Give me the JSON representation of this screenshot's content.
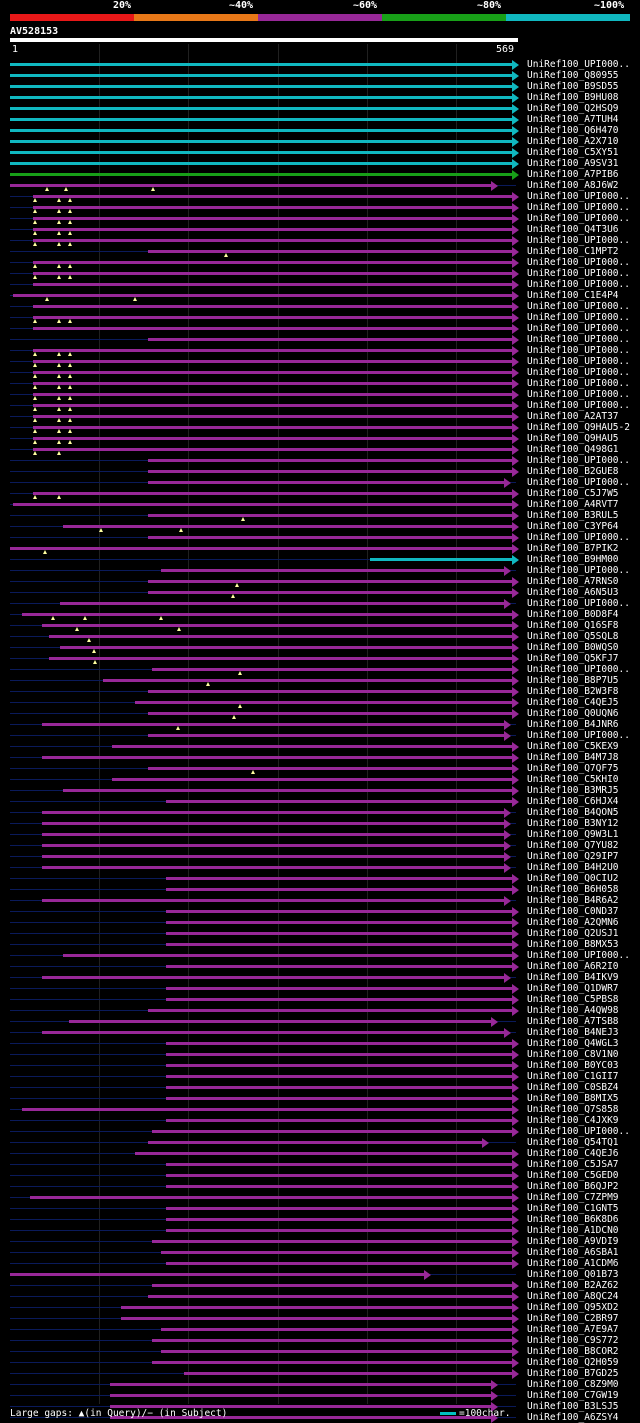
{
  "header": {
    "percent_labels": [
      "20%",
      "~40%",
      "~60%",
      "~80%",
      "~100%"
    ],
    "colors": [
      "#e81818",
      "#e87818",
      "#982898",
      "#18a018",
      "#10b8c0"
    ],
    "query_id": "AV528153",
    "ruler_start": "1",
    "ruler_end": "569",
    "query_length": 569
  },
  "footer": {
    "gaps_text": "Large gaps: ▲(in Query)/− (in Subject)",
    "scale_text": "=100char."
  },
  "chart_data": {
    "type": "alignment",
    "query_length": 569,
    "hits": [
      {
        "name": "UniRef100_UPI000..",
        "start": 1,
        "end": 569,
        "color": "cyan",
        "ins": []
      },
      {
        "name": "UniRef100_Q80955",
        "start": 1,
        "end": 569,
        "color": "cyan",
        "ins": []
      },
      {
        "name": "UniRef100_B9SD55",
        "start": 1,
        "end": 569,
        "color": "cyan",
        "ins": []
      },
      {
        "name": "UniRef100_B9HU08",
        "start": 1,
        "end": 569,
        "color": "cyan",
        "ins": []
      },
      {
        "name": "UniRef100_Q2HSQ9",
        "start": 1,
        "end": 569,
        "color": "cyan",
        "ins": []
      },
      {
        "name": "UniRef100_A7TUH4",
        "start": 1,
        "end": 569,
        "color": "cyan",
        "ins": []
      },
      {
        "name": "UniRef100_Q6H470",
        "start": 1,
        "end": 569,
        "color": "cyan",
        "ins": []
      },
      {
        "name": "UniRef100_A2X710",
        "start": 1,
        "end": 569,
        "color": "cyan",
        "ins": []
      },
      {
        "name": "UniRef100_C5XY51",
        "start": 1,
        "end": 569,
        "color": "cyan",
        "ins": []
      },
      {
        "name": "UniRef100_A9SV31",
        "start": 1,
        "end": 569,
        "color": "cyan",
        "ins": []
      },
      {
        "name": "UniRef100_A7PIB6",
        "start": 1,
        "end": 569,
        "color": "green",
        "ins": []
      },
      {
        "name": "UniRef100_A8J6W2",
        "start": 1,
        "end": 545,
        "color": "purple",
        "ins": [
          43,
          64,
          162
        ]
      },
      {
        "name": "UniRef100_UPI000..",
        "start": 27,
        "end": 569,
        "color": "purple",
        "ins": [
          29,
          56,
          68
        ]
      },
      {
        "name": "UniRef100_UPI000..",
        "start": 27,
        "end": 569,
        "color": "purple",
        "ins": [
          29,
          56,
          68
        ]
      },
      {
        "name": "UniRef100_UPI000..",
        "start": 27,
        "end": 569,
        "color": "purple",
        "ins": [
          29,
          56,
          68
        ]
      },
      {
        "name": "UniRef100_Q4T3U6",
        "start": 27,
        "end": 569,
        "color": "purple",
        "ins": [
          29,
          56,
          68
        ]
      },
      {
        "name": "UniRef100_UPI000..",
        "start": 27,
        "end": 569,
        "color": "purple",
        "ins": [
          29,
          56,
          68
        ]
      },
      {
        "name": "UniRef100_C1MPT2",
        "start": 156,
        "end": 569,
        "color": "purple",
        "ins": [
          243
        ]
      },
      {
        "name": "UniRef100_UPI000..",
        "start": 27,
        "end": 569,
        "color": "purple",
        "ins": [
          29,
          56,
          68
        ]
      },
      {
        "name": "UniRef100_UPI000..",
        "start": 27,
        "end": 569,
        "color": "purple",
        "ins": [
          29,
          56,
          68
        ]
      },
      {
        "name": "UniRef100_UPI000..",
        "start": 27,
        "end": 569,
        "color": "purple",
        "ins": []
      },
      {
        "name": "UniRef100_C1E4P4",
        "start": 4,
        "end": 569,
        "color": "purple",
        "ins": [
          43,
          141
        ]
      },
      {
        "name": "UniRef100_UPI000..",
        "start": 27,
        "end": 569,
        "color": "purple",
        "ins": []
      },
      {
        "name": "UniRef100_UPI000..",
        "start": 27,
        "end": 569,
        "color": "purple",
        "ins": [
          29,
          56,
          68
        ]
      },
      {
        "name": "UniRef100_UPI000..",
        "start": 27,
        "end": 569,
        "color": "purple",
        "ins": []
      },
      {
        "name": "UniRef100_UPI000..",
        "start": 156,
        "end": 569,
        "color": "purple",
        "ins": []
      },
      {
        "name": "UniRef100_UPI000..",
        "start": 27,
        "end": 569,
        "color": "purple",
        "ins": [
          29,
          56,
          68
        ]
      },
      {
        "name": "UniRef100_UPI000..",
        "start": 27,
        "end": 569,
        "color": "purple",
        "ins": [
          29,
          56,
          68
        ]
      },
      {
        "name": "UniRef100_UPI000..",
        "start": 27,
        "end": 569,
        "color": "purple",
        "ins": [
          29,
          56,
          68
        ]
      },
      {
        "name": "UniRef100_UPI000..",
        "start": 27,
        "end": 569,
        "color": "purple",
        "ins": [
          29,
          56,
          68
        ]
      },
      {
        "name": "UniRef100_UPI000..",
        "start": 27,
        "end": 569,
        "color": "purple",
        "ins": [
          29,
          56,
          68
        ]
      },
      {
        "name": "UniRef100_UPI000..",
        "start": 27,
        "end": 569,
        "color": "purple",
        "ins": [
          29,
          56,
          68
        ]
      },
      {
        "name": "UniRef100_A2AT37",
        "start": 27,
        "end": 569,
        "color": "purple",
        "ins": [
          29,
          56,
          68
        ]
      },
      {
        "name": "UniRef100_Q9HAU5-2",
        "start": 27,
        "end": 569,
        "color": "purple",
        "ins": [
          29,
          56,
          68
        ]
      },
      {
        "name": "UniRef100_Q9HAU5",
        "start": 27,
        "end": 569,
        "color": "purple",
        "ins": [
          29,
          56,
          68
        ]
      },
      {
        "name": "UniRef100_Q498G1",
        "start": 27,
        "end": 569,
        "color": "purple",
        "ins": [
          29,
          56
        ]
      },
      {
        "name": "UniRef100_UPI000..",
        "start": 156,
        "end": 569,
        "color": "purple",
        "ins": []
      },
      {
        "name": "UniRef100_B2GUE8",
        "start": 156,
        "end": 569,
        "color": "purple",
        "ins": []
      },
      {
        "name": "UniRef100_UPI000..",
        "start": 156,
        "end": 560,
        "color": "purple",
        "ins": []
      },
      {
        "name": "UniRef100_C5J7W5",
        "start": 27,
        "end": 569,
        "color": "purple",
        "ins": [
          29,
          56
        ]
      },
      {
        "name": "UniRef100_A4RVT7",
        "start": 4,
        "end": 569,
        "color": "purple",
        "ins": []
      },
      {
        "name": "UniRef100_B3RUL5",
        "start": 156,
        "end": 569,
        "color": "purple",
        "ins": [
          263
        ]
      },
      {
        "name": "UniRef100_C3YP64",
        "start": 60,
        "end": 569,
        "color": "purple",
        "ins": [
          103,
          193
        ]
      },
      {
        "name": "UniRef100_UPI000..",
        "start": 156,
        "end": 569,
        "color": "purple",
        "ins": []
      },
      {
        "name": "UniRef100_B7PIK2",
        "start": 1,
        "end": 569,
        "color": "purple",
        "ins": [
          40
        ]
      },
      {
        "name": "UniRef100_B9HM00",
        "start": 405,
        "end": 569,
        "color": "cyan",
        "ins": []
      },
      {
        "name": "UniRef100_UPI000..",
        "start": 170,
        "end": 560,
        "color": "purple",
        "ins": []
      },
      {
        "name": "UniRef100_A7RNS0",
        "start": 156,
        "end": 569,
        "color": "purple",
        "ins": [
          256
        ]
      },
      {
        "name": "UniRef100_A6N5U3",
        "start": 156,
        "end": 569,
        "color": "purple",
        "ins": [
          251
        ]
      },
      {
        "name": "UniRef100_UPI000..",
        "start": 57,
        "end": 560,
        "color": "purple",
        "ins": []
      },
      {
        "name": "UniRef100_B0D8F4",
        "start": 14,
        "end": 569,
        "color": "purple",
        "ins": [
          49,
          85,
          170
        ]
      },
      {
        "name": "UniRef100_Q16SF8",
        "start": 37,
        "end": 569,
        "color": "purple",
        "ins": [
          76,
          191
        ]
      },
      {
        "name": "UniRef100_Q5SQL8",
        "start": 45,
        "end": 569,
        "color": "purple",
        "ins": [
          90
        ]
      },
      {
        "name": "UniRef100_B0WQS0",
        "start": 57,
        "end": 569,
        "color": "purple",
        "ins": [
          95
        ]
      },
      {
        "name": "UniRef100_Q5KFJ7",
        "start": 45,
        "end": 569,
        "color": "purple",
        "ins": [
          96
        ]
      },
      {
        "name": "UniRef100_UPI000..",
        "start": 160,
        "end": 569,
        "color": "purple",
        "ins": [
          259
        ]
      },
      {
        "name": "UniRef100_B8P7U5",
        "start": 105,
        "end": 569,
        "color": "purple",
        "ins": [
          223
        ]
      },
      {
        "name": "UniRef100_B2W3F8",
        "start": 156,
        "end": 569,
        "color": "purple",
        "ins": []
      },
      {
        "name": "UniRef100_C4QEJ5",
        "start": 141,
        "end": 569,
        "color": "purple",
        "ins": [
          259
        ]
      },
      {
        "name": "UniRef100_Q0UQN6",
        "start": 156,
        "end": 569,
        "color": "purple",
        "ins": [
          252
        ]
      },
      {
        "name": "UniRef100_B4JNR6",
        "start": 37,
        "end": 560,
        "color": "purple",
        "ins": [
          190
        ]
      },
      {
        "name": "UniRef100_UPI000..",
        "start": 156,
        "end": 560,
        "color": "purple",
        "ins": []
      },
      {
        "name": "UniRef100_C5KEX9",
        "start": 116,
        "end": 569,
        "color": "purple",
        "ins": []
      },
      {
        "name": "UniRef100_B4M7J8",
        "start": 37,
        "end": 569,
        "color": "purple",
        "ins": []
      },
      {
        "name": "UniRef100_Q7QF75",
        "start": 156,
        "end": 569,
        "color": "purple",
        "ins": [
          274
        ]
      },
      {
        "name": "UniRef100_C5KHI0",
        "start": 116,
        "end": 569,
        "color": "purple",
        "ins": []
      },
      {
        "name": "UniRef100_B3MRJ5",
        "start": 60,
        "end": 569,
        "color": "purple",
        "ins": []
      },
      {
        "name": "UniRef100_C6HJX4",
        "start": 176,
        "end": 569,
        "color": "purple",
        "ins": []
      },
      {
        "name": "UniRef100_B4QON5",
        "start": 37,
        "end": 560,
        "color": "purple",
        "ins": []
      },
      {
        "name": "UniRef100_B3NY12",
        "start": 37,
        "end": 560,
        "color": "purple",
        "ins": []
      },
      {
        "name": "UniRef100_Q9W3L1",
        "start": 37,
        "end": 560,
        "color": "purple",
        "ins": []
      },
      {
        "name": "UniRef100_Q7YU82",
        "start": 37,
        "end": 560,
        "color": "purple",
        "ins": []
      },
      {
        "name": "UniRef100_Q29IP7",
        "start": 37,
        "end": 560,
        "color": "purple",
        "ins": []
      },
      {
        "name": "UniRef100_B4H2U0",
        "start": 37,
        "end": 560,
        "color": "purple",
        "ins": []
      },
      {
        "name": "UniRef100_Q0CIU2",
        "start": 176,
        "end": 569,
        "color": "purple",
        "ins": []
      },
      {
        "name": "UniRef100_B6H058",
        "start": 176,
        "end": 569,
        "color": "purple",
        "ins": []
      },
      {
        "name": "UniRef100_B4R6A2",
        "start": 37,
        "end": 560,
        "color": "purple",
        "ins": []
      },
      {
        "name": "UniRef100_C0ND37",
        "start": 176,
        "end": 569,
        "color": "purple",
        "ins": []
      },
      {
        "name": "UniRef100_A2QMN6",
        "start": 176,
        "end": 569,
        "color": "purple",
        "ins": []
      },
      {
        "name": "UniRef100_Q2USJ1",
        "start": 176,
        "end": 569,
        "color": "purple",
        "ins": []
      },
      {
        "name": "UniRef100_B8MX53",
        "start": 176,
        "end": 569,
        "color": "purple",
        "ins": []
      },
      {
        "name": "UniRef100_UPI000..",
        "start": 60,
        "end": 569,
        "color": "purple",
        "ins": []
      },
      {
        "name": "UniRef100_A6R2I0",
        "start": 176,
        "end": 569,
        "color": "purple",
        "ins": []
      },
      {
        "name": "UniRef100_B4IKV9",
        "start": 37,
        "end": 560,
        "color": "purple",
        "ins": []
      },
      {
        "name": "UniRef100_Q1DWR7",
        "start": 176,
        "end": 569,
        "color": "purple",
        "ins": []
      },
      {
        "name": "UniRef100_C5PBS8",
        "start": 176,
        "end": 569,
        "color": "purple",
        "ins": []
      },
      {
        "name": "UniRef100_A4QW98",
        "start": 156,
        "end": 569,
        "color": "purple",
        "ins": []
      },
      {
        "name": "UniRef100_A7TSB8",
        "start": 67,
        "end": 545,
        "color": "purple",
        "ins": []
      },
      {
        "name": "UniRef100_B4NEJ3",
        "start": 37,
        "end": 560,
        "color": "purple",
        "ins": []
      },
      {
        "name": "UniRef100_Q4WGL3",
        "start": 176,
        "end": 569,
        "color": "purple",
        "ins": []
      },
      {
        "name": "UniRef100_C8V1N0",
        "start": 176,
        "end": 569,
        "color": "purple",
        "ins": []
      },
      {
        "name": "UniRef100_B0YC03",
        "start": 176,
        "end": 569,
        "color": "purple",
        "ins": []
      },
      {
        "name": "UniRef100_C1GII7",
        "start": 176,
        "end": 569,
        "color": "purple",
        "ins": []
      },
      {
        "name": "UniRef100_C0SBZ4",
        "start": 176,
        "end": 569,
        "color": "purple",
        "ins": []
      },
      {
        "name": "UniRef100_B8MIX5",
        "start": 176,
        "end": 569,
        "color": "purple",
        "ins": []
      },
      {
        "name": "UniRef100_Q7S858",
        "start": 14,
        "end": 569,
        "color": "purple",
        "ins": []
      },
      {
        "name": "UniRef100_C4JXK9",
        "start": 176,
        "end": 569,
        "color": "purple",
        "ins": []
      },
      {
        "name": "UniRef100_UPI000..",
        "start": 160,
        "end": 569,
        "color": "purple",
        "ins": []
      },
      {
        "name": "UniRef100_Q54TQ1",
        "start": 156,
        "end": 535,
        "color": "purple",
        "ins": []
      },
      {
        "name": "UniRef100_C4QEJ6",
        "start": 141,
        "end": 569,
        "color": "purple",
        "ins": []
      },
      {
        "name": "UniRef100_C5JSA7",
        "start": 176,
        "end": 569,
        "color": "purple",
        "ins": []
      },
      {
        "name": "UniRef100_C5GED0",
        "start": 176,
        "end": 569,
        "color": "purple",
        "ins": []
      },
      {
        "name": "UniRef100_B6QJP2",
        "start": 176,
        "end": 569,
        "color": "purple",
        "ins": []
      },
      {
        "name": "UniRef100_C7ZPM9",
        "start": 24,
        "end": 569,
        "color": "purple",
        "ins": []
      },
      {
        "name": "UniRef100_C1GNT5",
        "start": 176,
        "end": 569,
        "color": "purple",
        "ins": []
      },
      {
        "name": "UniRef100_B6K8D6",
        "start": 176,
        "end": 569,
        "color": "purple",
        "ins": []
      },
      {
        "name": "UniRef100_A1DCN0",
        "start": 176,
        "end": 569,
        "color": "purple",
        "ins": []
      },
      {
        "name": "UniRef100_A9VDI9",
        "start": 160,
        "end": 569,
        "color": "purple",
        "ins": []
      },
      {
        "name": "UniRef100_A6SBA1",
        "start": 170,
        "end": 569,
        "color": "purple",
        "ins": []
      },
      {
        "name": "UniRef100_A1CDM6",
        "start": 176,
        "end": 569,
        "color": "purple",
        "ins": []
      },
      {
        "name": "UniRef100_Q01B73",
        "start": 1,
        "end": 470,
        "color": "purple",
        "ins": []
      },
      {
        "name": "UniRef100_B2AZ62",
        "start": 160,
        "end": 569,
        "color": "purple",
        "ins": []
      },
      {
        "name": "UniRef100_A8QC24",
        "start": 156,
        "end": 569,
        "color": "purple",
        "ins": []
      },
      {
        "name": "UniRef100_Q95XD2",
        "start": 126,
        "end": 569,
        "color": "purple",
        "ins": []
      },
      {
        "name": "UniRef100_C2BR97",
        "start": 126,
        "end": 569,
        "color": "purple",
        "ins": []
      },
      {
        "name": "UniRef100_A7E9A7",
        "start": 170,
        "end": 569,
        "color": "purple",
        "ins": []
      },
      {
        "name": "UniRef100_C9S772",
        "start": 160,
        "end": 569,
        "color": "purple",
        "ins": []
      },
      {
        "name": "UniRef100_B8COR2",
        "start": 170,
        "end": 569,
        "color": "purple",
        "ins": []
      },
      {
        "name": "UniRef100_Q2H059",
        "start": 160,
        "end": 569,
        "color": "purple",
        "ins": []
      },
      {
        "name": "UniRef100_B7GD25",
        "start": 196,
        "end": 569,
        "color": "purple",
        "ins": []
      },
      {
        "name": "UniRef100_C8Z9M0",
        "start": 113,
        "end": 545,
        "color": "purple",
        "ins": []
      },
      {
        "name": "UniRef100_C7GW19",
        "start": 113,
        "end": 545,
        "color": "purple",
        "ins": []
      },
      {
        "name": "UniRef100_B3LSJ5",
        "start": 113,
        "end": 545,
        "color": "purple",
        "ins": []
      },
      {
        "name": "UniRef100_A6ZSY4",
        "start": 113,
        "end": 545,
        "color": "purple",
        "ins": []
      }
    ]
  }
}
